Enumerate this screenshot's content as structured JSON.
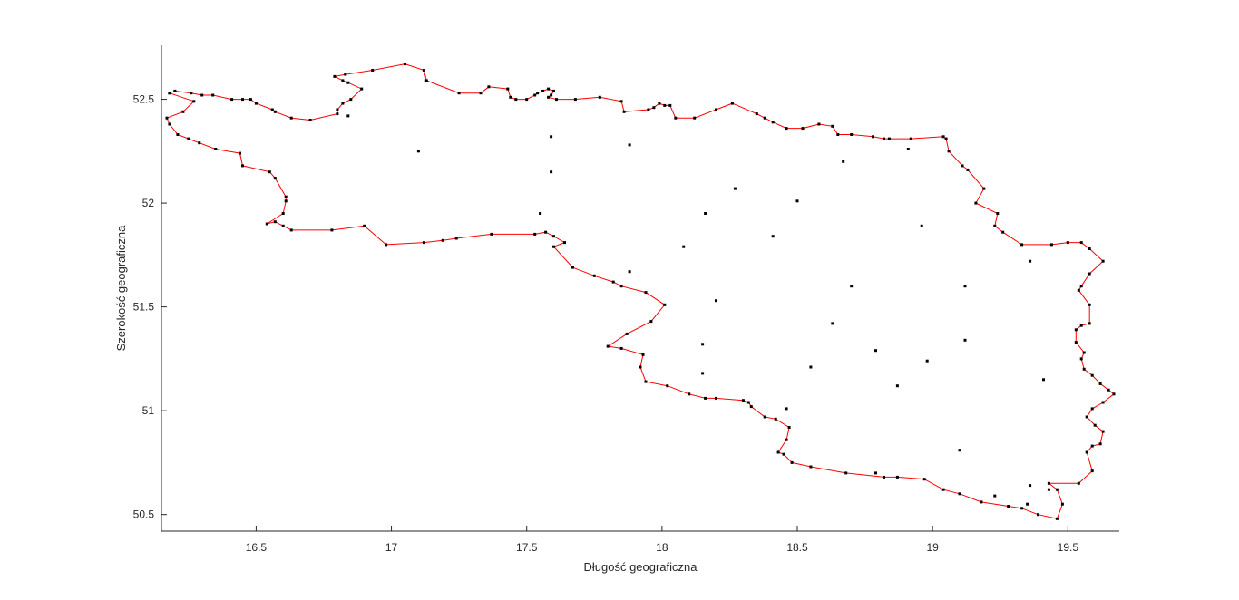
{
  "chart_data": {
    "type": "scatter",
    "title": "",
    "xlabel": "Długość geograficzna",
    "ylabel": "Szerokość geograficzna",
    "xlim": [
      16.15,
      19.69
    ],
    "ylim": [
      50.42,
      52.76
    ],
    "xticks": [
      16.5,
      17,
      17.5,
      18,
      18.5,
      19,
      19.5
    ],
    "yticks": [
      50.5,
      51,
      51.5,
      52,
      52.5
    ],
    "boundary_color": "#ff0000",
    "point_color": "#000000",
    "boundary": [
      [
        16.18,
        52.53
      ],
      [
        16.2,
        52.54
      ],
      [
        16.26,
        52.53
      ],
      [
        16.3,
        52.52
      ],
      [
        16.34,
        52.52
      ],
      [
        16.41,
        52.5
      ],
      [
        16.45,
        52.5
      ],
      [
        16.48,
        52.5
      ],
      [
        16.5,
        52.48
      ],
      [
        16.56,
        52.45
      ],
      [
        16.57,
        52.44
      ],
      [
        16.63,
        52.41
      ],
      [
        16.7,
        52.4
      ],
      [
        16.8,
        52.43
      ],
      [
        16.8,
        52.45
      ],
      [
        16.82,
        52.48
      ],
      [
        16.85,
        52.5
      ],
      [
        16.89,
        52.55
      ],
      [
        16.84,
        52.58
      ],
      [
        16.82,
        52.59
      ],
      [
        16.79,
        52.61
      ],
      [
        16.83,
        52.62
      ],
      [
        16.93,
        52.64
      ],
      [
        17.05,
        52.67
      ],
      [
        17.12,
        52.64
      ],
      [
        17.13,
        52.59
      ],
      [
        17.25,
        52.53
      ],
      [
        17.33,
        52.53
      ],
      [
        17.36,
        52.56
      ],
      [
        17.43,
        52.55
      ],
      [
        17.44,
        52.51
      ],
      [
        17.46,
        52.5
      ],
      [
        17.5,
        52.5
      ],
      [
        17.53,
        52.52
      ],
      [
        17.54,
        52.53
      ],
      [
        17.56,
        52.54
      ],
      [
        17.58,
        52.55
      ],
      [
        17.6,
        52.54
      ],
      [
        17.59,
        52.52
      ],
      [
        17.58,
        52.51
      ],
      [
        17.61,
        52.5
      ],
      [
        17.68,
        52.5
      ],
      [
        17.77,
        52.51
      ],
      [
        17.85,
        52.49
      ],
      [
        17.86,
        52.44
      ],
      [
        17.95,
        52.45
      ],
      [
        17.97,
        52.46
      ],
      [
        17.99,
        52.48
      ],
      [
        18.01,
        52.47
      ],
      [
        18.03,
        52.47
      ],
      [
        18.05,
        52.41
      ],
      [
        18.12,
        52.41
      ],
      [
        18.2,
        52.45
      ],
      [
        18.26,
        52.48
      ],
      [
        18.35,
        52.43
      ],
      [
        18.38,
        52.41
      ],
      [
        18.41,
        52.39
      ],
      [
        18.46,
        52.36
      ],
      [
        18.52,
        52.36
      ],
      [
        18.58,
        52.38
      ],
      [
        18.63,
        52.37
      ],
      [
        18.65,
        52.33
      ],
      [
        18.7,
        52.33
      ],
      [
        18.78,
        52.32
      ],
      [
        18.82,
        52.31
      ],
      [
        18.84,
        52.31
      ],
      [
        18.92,
        52.31
      ],
      [
        19.04,
        52.32
      ],
      [
        19.05,
        52.31
      ],
      [
        19.06,
        52.25
      ],
      [
        19.11,
        52.18
      ],
      [
        19.13,
        52.16
      ],
      [
        19.19,
        52.07
      ],
      [
        19.16,
        52.0
      ],
      [
        19.24,
        51.95
      ],
      [
        19.23,
        51.89
      ],
      [
        19.26,
        51.86
      ],
      [
        19.33,
        51.8
      ],
      [
        19.44,
        51.8
      ],
      [
        19.5,
        51.81
      ],
      [
        19.55,
        51.81
      ],
      [
        19.58,
        51.78
      ],
      [
        19.63,
        51.72
      ],
      [
        19.58,
        51.66
      ],
      [
        19.55,
        51.6
      ],
      [
        19.54,
        51.58
      ],
      [
        19.58,
        51.51
      ],
      [
        19.58,
        51.42
      ],
      [
        19.55,
        51.41
      ],
      [
        19.53,
        51.39
      ],
      [
        19.53,
        51.33
      ],
      [
        19.56,
        51.28
      ],
      [
        19.55,
        51.25
      ],
      [
        19.56,
        51.2
      ],
      [
        19.59,
        51.17
      ],
      [
        19.62,
        51.13
      ],
      [
        19.65,
        51.1
      ],
      [
        19.67,
        51.08
      ],
      [
        19.63,
        51.04
      ],
      [
        19.59,
        51.01
      ],
      [
        19.57,
        50.97
      ],
      [
        19.6,
        50.93
      ],
      [
        19.63,
        50.9
      ],
      [
        19.62,
        50.84
      ],
      [
        19.59,
        50.83
      ],
      [
        19.57,
        50.8
      ],
      [
        19.59,
        50.71
      ],
      [
        19.54,
        50.65
      ],
      [
        19.43,
        50.65
      ],
      [
        19.46,
        50.62
      ],
      [
        19.48,
        50.55
      ],
      [
        19.46,
        50.48
      ],
      [
        19.39,
        50.5
      ],
      [
        19.33,
        50.53
      ],
      [
        19.28,
        50.54
      ],
      [
        19.18,
        50.56
      ],
      [
        19.1,
        50.6
      ],
      [
        19.04,
        50.62
      ],
      [
        18.97,
        50.67
      ],
      [
        18.87,
        50.68
      ],
      [
        18.82,
        50.68
      ],
      [
        18.68,
        50.7
      ],
      [
        18.55,
        50.73
      ],
      [
        18.48,
        50.75
      ],
      [
        18.45,
        50.79
      ],
      [
        18.43,
        50.8
      ],
      [
        18.46,
        50.86
      ],
      [
        18.47,
        50.92
      ],
      [
        18.42,
        50.96
      ],
      [
        18.38,
        50.97
      ],
      [
        18.33,
        51.02
      ],
      [
        18.32,
        51.04
      ],
      [
        18.3,
        51.05
      ],
      [
        18.2,
        51.06
      ],
      [
        18.16,
        51.06
      ],
      [
        18.1,
        51.08
      ],
      [
        18.02,
        51.12
      ],
      [
        17.94,
        51.14
      ],
      [
        17.92,
        51.21
      ],
      [
        17.93,
        51.27
      ],
      [
        17.85,
        51.3
      ],
      [
        17.8,
        51.31
      ],
      [
        17.87,
        51.37
      ],
      [
        17.96,
        51.43
      ],
      [
        18.01,
        51.51
      ],
      [
        17.94,
        51.57
      ],
      [
        17.85,
        51.6
      ],
      [
        17.82,
        51.62
      ],
      [
        17.75,
        51.65
      ],
      [
        17.67,
        51.69
      ],
      [
        17.6,
        51.79
      ],
      [
        17.64,
        51.81
      ],
      [
        17.6,
        51.84
      ],
      [
        17.57,
        51.86
      ],
      [
        17.53,
        51.85
      ],
      [
        17.37,
        51.85
      ],
      [
        17.24,
        51.83
      ],
      [
        17.19,
        51.82
      ],
      [
        17.12,
        51.81
      ],
      [
        16.98,
        51.8
      ],
      [
        16.9,
        51.89
      ],
      [
        16.78,
        51.87
      ],
      [
        16.63,
        51.87
      ],
      [
        16.6,
        51.89
      ],
      [
        16.57,
        51.91
      ],
      [
        16.54,
        51.9
      ],
      [
        16.6,
        51.95
      ],
      [
        16.61,
        52.01
      ],
      [
        16.61,
        52.03
      ],
      [
        16.57,
        52.12
      ],
      [
        16.55,
        52.15
      ],
      [
        16.45,
        52.18
      ],
      [
        16.44,
        52.24
      ],
      [
        16.35,
        52.26
      ],
      [
        16.29,
        52.29
      ],
      [
        16.25,
        52.31
      ],
      [
        16.21,
        52.33
      ],
      [
        16.18,
        52.38
      ],
      [
        16.17,
        52.41
      ],
      [
        16.23,
        52.44
      ],
      [
        16.27,
        52.49
      ],
      [
        16.18,
        52.53
      ]
    ],
    "interior_points": [
      [
        17.1,
        52.25
      ],
      [
        17.59,
        52.32
      ],
      [
        17.88,
        52.28
      ],
      [
        17.59,
        52.15
      ],
      [
        16.84,
        52.42
      ],
      [
        17.55,
        51.95
      ],
      [
        18.27,
        52.07
      ],
      [
        18.5,
        52.01
      ],
      [
        18.16,
        51.95
      ],
      [
        18.08,
        51.79
      ],
      [
        18.41,
        51.84
      ],
      [
        18.67,
        52.2
      ],
      [
        18.91,
        52.26
      ],
      [
        18.96,
        51.89
      ],
      [
        19.36,
        51.72
      ],
      [
        17.88,
        51.67
      ],
      [
        18.2,
        51.53
      ],
      [
        18.7,
        51.6
      ],
      [
        19.12,
        51.6
      ],
      [
        18.63,
        51.42
      ],
      [
        19.12,
        51.34
      ],
      [
        18.15,
        51.32
      ],
      [
        18.79,
        51.29
      ],
      [
        18.98,
        51.24
      ],
      [
        18.55,
        51.21
      ],
      [
        18.15,
        51.18
      ],
      [
        19.41,
        51.15
      ],
      [
        18.87,
        51.12
      ],
      [
        18.46,
        51.01
      ],
      [
        19.1,
        50.81
      ],
      [
        18.79,
        50.7
      ],
      [
        19.23,
        50.59
      ],
      [
        19.36,
        50.64
      ],
      [
        19.35,
        50.55
      ],
      [
        19.43,
        50.62
      ]
    ]
  }
}
